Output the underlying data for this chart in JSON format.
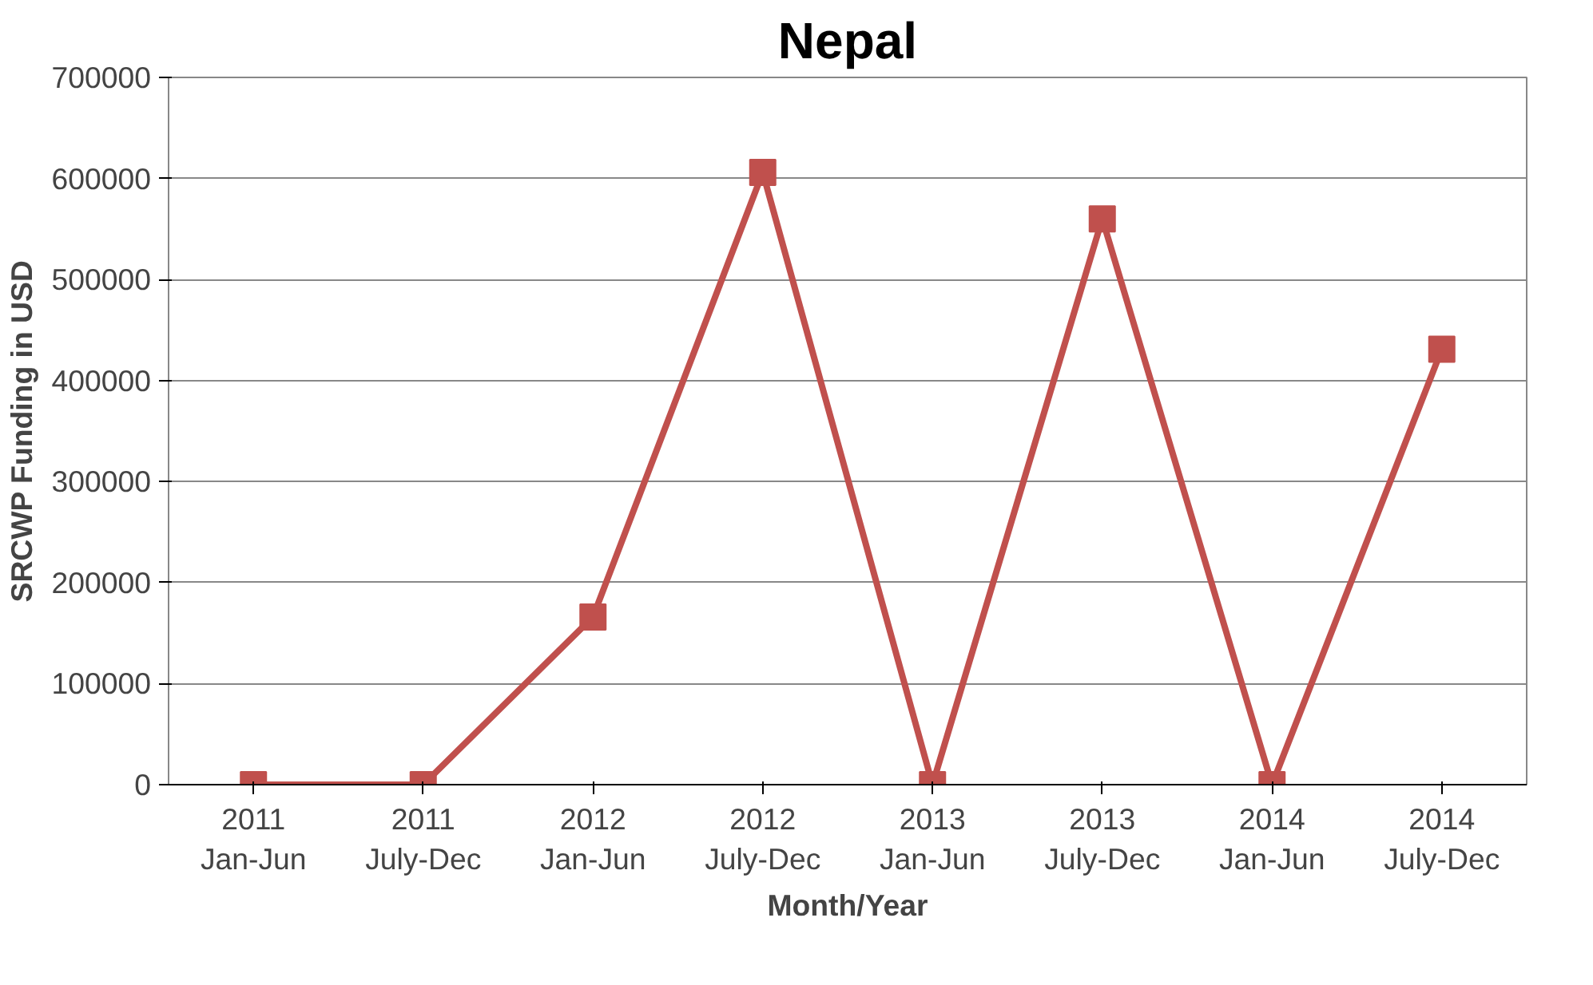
{
  "chart_data": {
    "type": "line",
    "title": "Nepal",
    "xlabel": "Month/Year",
    "ylabel": "SRCWP Funding in USD",
    "categories": [
      "2011\nJan-Jun",
      "2011\nJuly-Dec",
      "2012\nJan-Jun",
      "2012\nJuly-Dec",
      "2013\nJan-Jun",
      "2013\nJuly-Dec",
      "2014\nJan-Jun",
      "2014\nJuly-Dec"
    ],
    "series": [
      {
        "color": "#c0504d",
        "values": [
          0,
          0,
          166000,
          606000,
          0,
          560000,
          0,
          431000
        ]
      }
    ],
    "ylim": [
      0,
      700000
    ],
    "yticks": [
      0,
      100000,
      200000,
      300000,
      400000,
      500000,
      600000,
      700000
    ],
    "grid": "y",
    "marker": "square"
  }
}
